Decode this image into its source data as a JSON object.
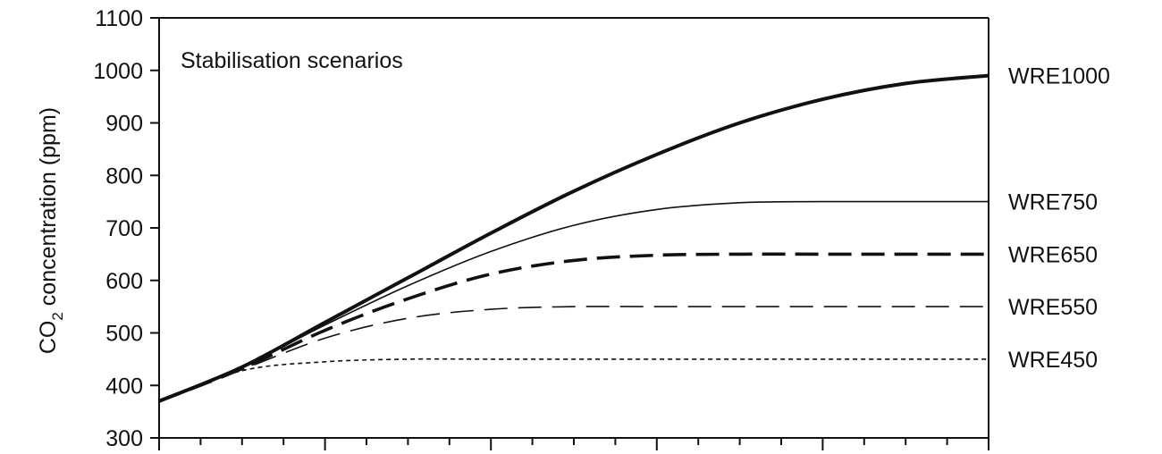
{
  "chart_data": {
    "type": "line",
    "title": "",
    "annotation": "Stabilisation scenarios",
    "ylabel_main": "CO",
    "ylabel_sub": "2",
    "ylabel_rest": " concentration (ppm)",
    "ylim": [
      300,
      1100
    ],
    "yticks": [
      300,
      400,
      500,
      600,
      700,
      800,
      900,
      1000,
      1100
    ],
    "x_range": [
      0,
      1
    ],
    "x_major_ticks": 6,
    "x_minor_per_major": 4,
    "grid": false,
    "legend": "labels at right end of each line",
    "series": [
      {
        "name": "WRE1000",
        "style": "thick-solid",
        "x": [
          0,
          0.1,
          0.2,
          0.3,
          0.4,
          0.5,
          0.6,
          0.7,
          0.8,
          0.9,
          1.0
        ],
        "y": [
          370,
          435,
          520,
          605,
          690,
          770,
          840,
          900,
          945,
          975,
          990
        ]
      },
      {
        "name": "WRE750",
        "style": "thin-solid",
        "x": [
          0,
          0.1,
          0.2,
          0.3,
          0.4,
          0.5,
          0.6,
          0.7,
          0.8,
          0.9,
          1.0
        ],
        "y": [
          370,
          435,
          515,
          590,
          655,
          705,
          735,
          748,
          750,
          750,
          750
        ]
      },
      {
        "name": "WRE650",
        "style": "thick-dashed",
        "x": [
          0,
          0.1,
          0.2,
          0.3,
          0.4,
          0.5,
          0.6,
          0.7,
          0.8,
          0.9,
          1.0
        ],
        "y": [
          370,
          432,
          505,
          565,
          612,
          638,
          648,
          650,
          650,
          650,
          650
        ]
      },
      {
        "name": "WRE550",
        "style": "thin-dashed",
        "x": [
          0,
          0.1,
          0.2,
          0.3,
          0.4,
          0.5,
          0.6,
          0.7,
          0.8,
          0.9,
          1.0
        ],
        "y": [
          370,
          430,
          490,
          528,
          545,
          550,
          550,
          550,
          550,
          550,
          550
        ]
      },
      {
        "name": "WRE450",
        "style": "thin-dotted",
        "x": [
          0,
          0.1,
          0.2,
          0.3,
          0.4,
          0.5,
          0.6,
          0.7,
          0.8,
          0.9,
          1.0
        ],
        "y": [
          370,
          428,
          445,
          450,
          450,
          450,
          450,
          450,
          450,
          450,
          450
        ]
      }
    ]
  }
}
